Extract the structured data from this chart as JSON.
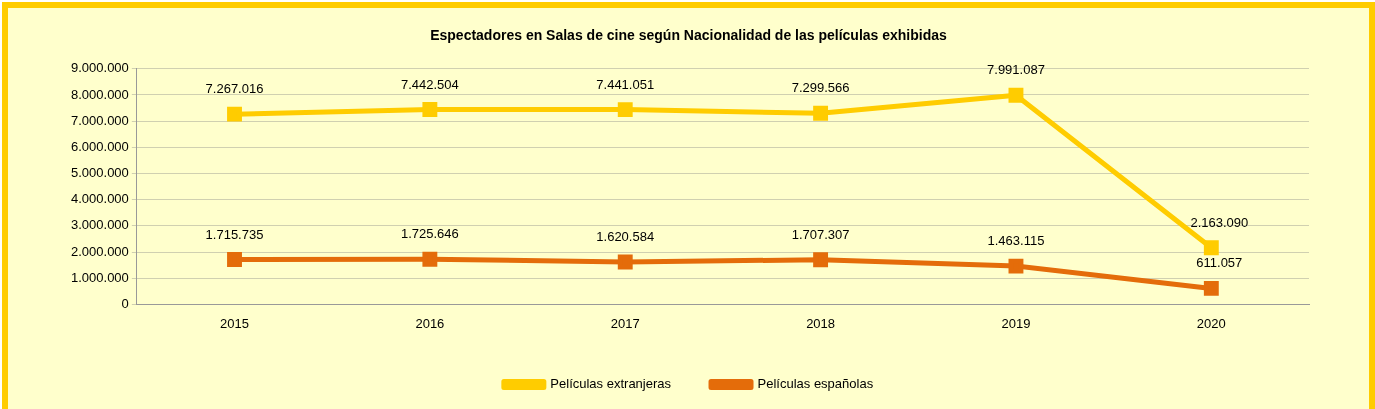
{
  "chart_data": {
    "type": "line",
    "title": "Espectadores en Salas de cine según Nacionalidad de las películas exhibidas",
    "categories": [
      "2015",
      "2016",
      "2017",
      "2018",
      "2019",
      "2020"
    ],
    "series": [
      {
        "name": "Películas extranjeras",
        "color": "#ffcc00",
        "values": [
          7267016,
          7442504,
          7441051,
          7299566,
          7991087,
          2163090
        ],
        "value_labels": [
          "7.267.016",
          "7.442.504",
          "7.441.051",
          "7.299.566",
          "7.991.087",
          "2.163.090"
        ]
      },
      {
        "name": "Películas españolas",
        "color": "#e46c0a",
        "values": [
          1715735,
          1725646,
          1620584,
          1707307,
          1463115,
          611057
        ],
        "value_labels": [
          "1.715.735",
          "1.725.646",
          "1.620.584",
          "1.707.307",
          "1.463.115",
          "611.057"
        ]
      }
    ],
    "ylim": [
      0,
      9000000
    ],
    "yticks": [
      0,
      {
        "value": 1000000,
        "label": "1.000.000"
      },
      {
        "value": 2000000,
        "label": "2.000.000"
      },
      {
        "value": 3000000,
        "label": "3.000.000"
      },
      {
        "value": 4000000,
        "label": "4.000.000"
      },
      {
        "value": 5000000,
        "label": "5.000.000"
      },
      {
        "value": 6000000,
        "label": "6.000.000"
      },
      {
        "value": 7000000,
        "label": "7.000.000"
      },
      {
        "value": 8000000,
        "label": "8.000.000"
      },
      {
        "value": 9000000,
        "label": "9.000.000"
      }
    ],
    "grid": "y",
    "legend": "bottom",
    "marker": "square",
    "line_style": "solid"
  }
}
